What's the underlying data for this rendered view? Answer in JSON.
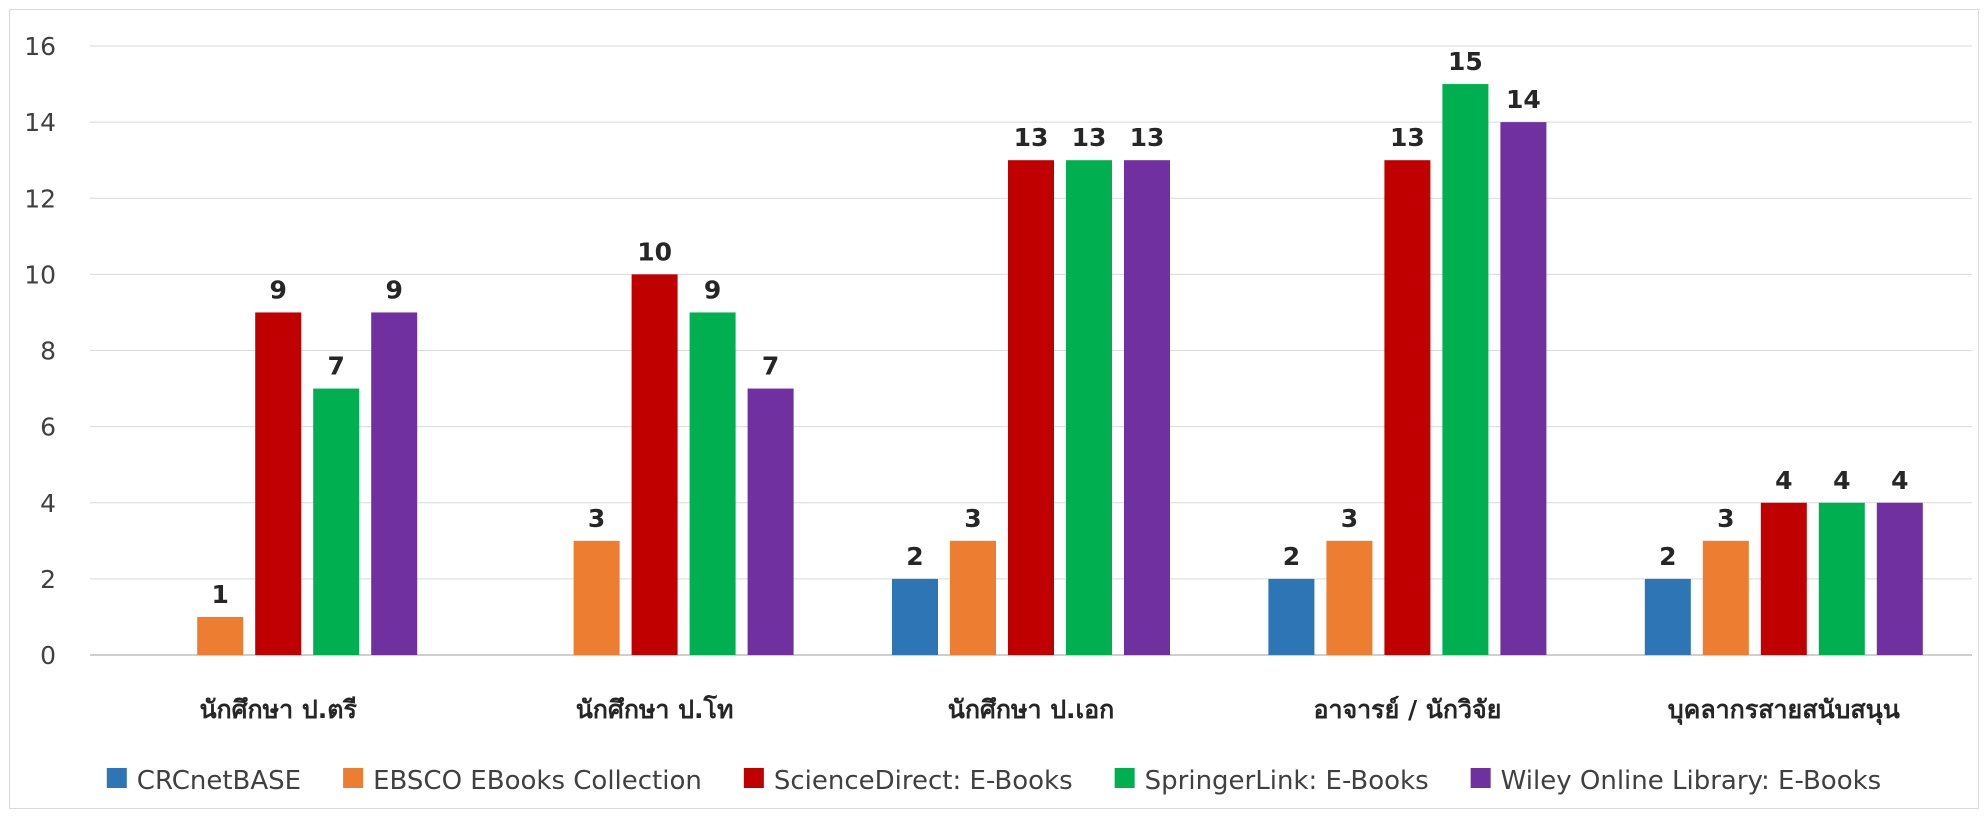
{
  "chart_data": {
    "type": "bar",
    "title": "",
    "xlabel": "",
    "ylabel": "",
    "ylim": [
      0,
      16
    ],
    "yticks": [
      0,
      2,
      4,
      6,
      8,
      10,
      12,
      14,
      16
    ],
    "grid": true,
    "legend_position": "bottom",
    "categories": [
      "นักศึกษา ป.ตรี",
      "นักศึกษา ป.โท",
      "นักศึกษา ป.เอก",
      "อาจารย์ / นักวิจัย",
      "บุคลากรสายสนับสนุน"
    ],
    "series": [
      {
        "name": "CRCnetBASE",
        "color": "#2E75B6",
        "values": [
          null,
          null,
          2,
          2,
          2
        ]
      },
      {
        "name": "EBSCO EBooks Collection",
        "color": "#ED7D31",
        "values": [
          1,
          3,
          3,
          3,
          3
        ]
      },
      {
        "name": "ScienceDirect: E-Books",
        "color": "#C00000",
        "values": [
          9,
          10,
          13,
          13,
          4
        ]
      },
      {
        "name": "SpringerLink: E-Books",
        "color": "#00B050",
        "values": [
          7,
          9,
          13,
          15,
          4
        ]
      },
      {
        "name": "Wiley Online Library: E-Books",
        "color": "#7030A0",
        "values": [
          9,
          7,
          13,
          14,
          4
        ]
      }
    ]
  }
}
